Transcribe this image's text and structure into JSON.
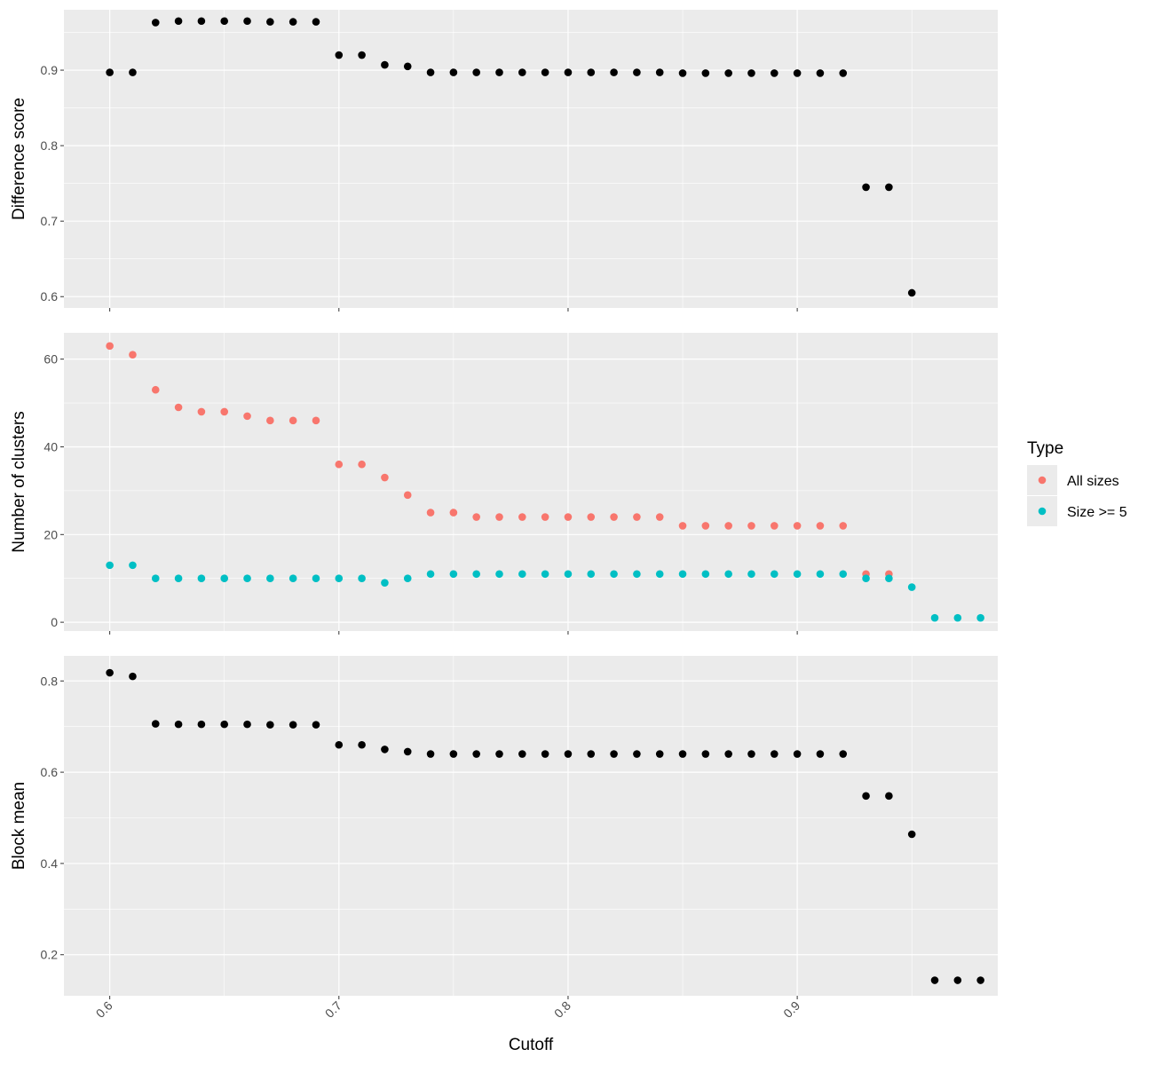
{
  "chart_data": [
    {
      "type": "scatter",
      "panel": "top",
      "ylabel": "Difference score",
      "xlabel": "",
      "xlim": [
        0.58,
        0.9875
      ],
      "ylim": [
        0.585,
        0.98
      ],
      "y_ticks": [
        0.6,
        0.7,
        0.8,
        0.9
      ],
      "y_tick_labels": [
        "0.6",
        "0.7",
        "0.8",
        "0.9"
      ],
      "x_ticks": [
        0.6,
        0.7,
        0.8,
        0.9
      ],
      "grid": true,
      "series": [
        {
          "color": "#000000",
          "x": [
            0.6,
            0.61,
            0.62,
            0.63,
            0.64,
            0.65,
            0.66,
            0.67,
            0.68,
            0.69,
            0.7,
            0.71,
            0.72,
            0.73,
            0.74,
            0.75,
            0.76,
            0.77,
            0.78,
            0.79,
            0.8,
            0.81,
            0.82,
            0.83,
            0.84,
            0.85,
            0.86,
            0.87,
            0.88,
            0.89,
            0.9,
            0.91,
            0.92,
            0.93,
            0.94,
            0.95
          ],
          "y": [
            0.897,
            0.897,
            0.963,
            0.965,
            0.965,
            0.965,
            0.965,
            0.964,
            0.964,
            0.964,
            0.92,
            0.92,
            0.907,
            0.905,
            0.897,
            0.897,
            0.897,
            0.897,
            0.897,
            0.897,
            0.897,
            0.897,
            0.897,
            0.897,
            0.897,
            0.896,
            0.896,
            0.896,
            0.896,
            0.896,
            0.896,
            0.896,
            0.896,
            0.745,
            0.745,
            0.605
          ]
        }
      ]
    },
    {
      "type": "scatter",
      "panel": "middle",
      "ylabel": "Number of clusters",
      "xlabel": "",
      "xlim": [
        0.58,
        0.9875
      ],
      "ylim": [
        -2,
        66
      ],
      "y_ticks": [
        0,
        20,
        40,
        60
      ],
      "y_tick_labels": [
        "0",
        "20",
        "40",
        "60"
      ],
      "x_ticks": [
        0.6,
        0.7,
        0.8,
        0.9
      ],
      "grid": true,
      "legend": {
        "title": "Type",
        "placement": "right",
        "entries": [
          {
            "label": "All sizes",
            "color": "#F8766D"
          },
          {
            "label": "Size >= 5",
            "color": "#00BFC4"
          }
        ]
      },
      "series": [
        {
          "name": "All sizes",
          "color": "#F8766D",
          "x": [
            0.6,
            0.61,
            0.62,
            0.63,
            0.64,
            0.65,
            0.66,
            0.67,
            0.68,
            0.69,
            0.7,
            0.71,
            0.72,
            0.73,
            0.74,
            0.75,
            0.76,
            0.77,
            0.78,
            0.79,
            0.8,
            0.81,
            0.82,
            0.83,
            0.84,
            0.85,
            0.86,
            0.87,
            0.88,
            0.89,
            0.9,
            0.91,
            0.92,
            0.93,
            0.94
          ],
          "y": [
            63,
            61,
            53,
            49,
            48,
            48,
            47,
            46,
            46,
            46,
            36,
            36,
            33,
            29,
            25,
            25,
            24,
            24,
            24,
            24,
            24,
            24,
            24,
            24,
            24,
            22,
            22,
            22,
            22,
            22,
            22,
            22,
            22,
            11,
            11
          ]
        },
        {
          "name": "Size >= 5",
          "color": "#00BFC4",
          "x": [
            0.6,
            0.61,
            0.62,
            0.63,
            0.64,
            0.65,
            0.66,
            0.67,
            0.68,
            0.69,
            0.7,
            0.71,
            0.72,
            0.73,
            0.74,
            0.75,
            0.76,
            0.77,
            0.78,
            0.79,
            0.8,
            0.81,
            0.82,
            0.83,
            0.84,
            0.85,
            0.86,
            0.87,
            0.88,
            0.89,
            0.9,
            0.91,
            0.92,
            0.93,
            0.94,
            0.95,
            0.96,
            0.97,
            0.98
          ],
          "y": [
            13,
            13,
            10,
            10,
            10,
            10,
            10,
            10,
            10,
            10,
            10,
            10,
            9,
            10,
            11,
            11,
            11,
            11,
            11,
            11,
            11,
            11,
            11,
            11,
            11,
            11,
            11,
            11,
            11,
            11,
            11,
            11,
            11,
            10,
            10,
            8,
            1,
            1,
            1
          ]
        }
      ]
    },
    {
      "type": "scatter",
      "panel": "bottom",
      "ylabel": "Block mean",
      "xlabel": "Cutoff",
      "xlim": [
        0.58,
        0.9875
      ],
      "ylim": [
        0.11,
        0.855
      ],
      "y_ticks": [
        0.2,
        0.4,
        0.6,
        0.8
      ],
      "y_tick_labels": [
        "0.2",
        "0.4",
        "0.6",
        "0.8"
      ],
      "x_ticks": [
        0.6,
        0.7,
        0.8,
        0.9
      ],
      "x_tick_labels": [
        "0.6",
        "0.7",
        "0.8",
        "0.9"
      ],
      "grid": true,
      "series": [
        {
          "color": "#000000",
          "x": [
            0.6,
            0.61,
            0.62,
            0.63,
            0.64,
            0.65,
            0.66,
            0.67,
            0.68,
            0.69,
            0.7,
            0.71,
            0.72,
            0.73,
            0.74,
            0.75,
            0.76,
            0.77,
            0.78,
            0.79,
            0.8,
            0.81,
            0.82,
            0.83,
            0.84,
            0.85,
            0.86,
            0.87,
            0.88,
            0.89,
            0.9,
            0.91,
            0.92,
            0.93,
            0.94,
            0.95,
            0.96,
            0.97,
            0.98
          ],
          "y": [
            0.818,
            0.81,
            0.706,
            0.705,
            0.705,
            0.705,
            0.705,
            0.704,
            0.704,
            0.704,
            0.66,
            0.66,
            0.65,
            0.645,
            0.64,
            0.64,
            0.64,
            0.64,
            0.64,
            0.64,
            0.64,
            0.64,
            0.64,
            0.64,
            0.64,
            0.64,
            0.64,
            0.64,
            0.64,
            0.64,
            0.64,
            0.64,
            0.64,
            0.548,
            0.548,
            0.464,
            0.144,
            0.144,
            0.144
          ]
        }
      ]
    }
  ],
  "colors": {
    "panel_background": "#EBEBEB",
    "grid_major": "#FFFFFF",
    "tick_label": "#4D4D4D"
  }
}
